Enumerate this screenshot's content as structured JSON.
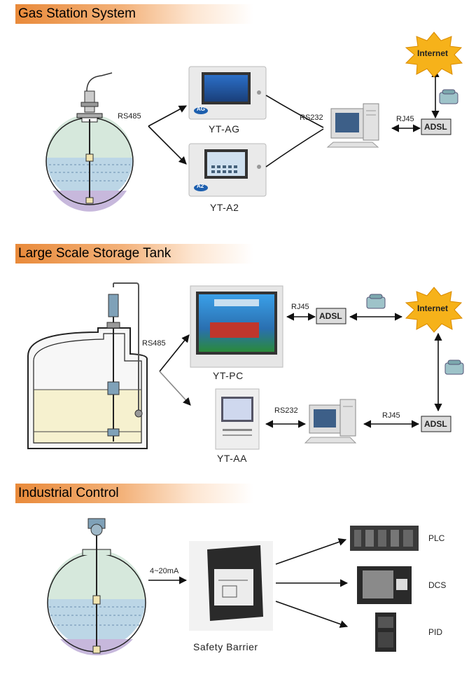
{
  "sections": {
    "gas": {
      "title": "Gas Station System"
    },
    "tank": {
      "title": "Large Scale Storage Tank"
    },
    "industrial": {
      "title": "Industrial Control"
    }
  },
  "gas": {
    "rs485": "RS485",
    "rs232": "RS232",
    "rj45": "RJ45",
    "adsl": "ADSL",
    "internet": "Internet",
    "device_ag": "YT-AG",
    "device_a2": "YT-A2",
    "badge_ag": "AG",
    "badge_a2": "A2"
  },
  "tank": {
    "rs485": "RS485",
    "rj45_top": "RJ45",
    "adsl_top": "ADSL",
    "internet": "Internet",
    "rs232": "RS232",
    "rj45_bottom": "RJ45",
    "adsl_bottom": "ADSL",
    "device_pc": "YT-PC",
    "device_aa": "YT-AA"
  },
  "industrial": {
    "signal": "4~20mA",
    "barrier": "Safety Barrier",
    "outputs": [
      "PLC",
      "DCS",
      "PID"
    ]
  },
  "colors": {
    "banner": "#e98a3a",
    "internet_burst": "#f6b21a",
    "tank_gas": "#d6e8dc",
    "tank_liquid": "#bcd6e6",
    "tank_sediment": "#c7b8dc"
  }
}
